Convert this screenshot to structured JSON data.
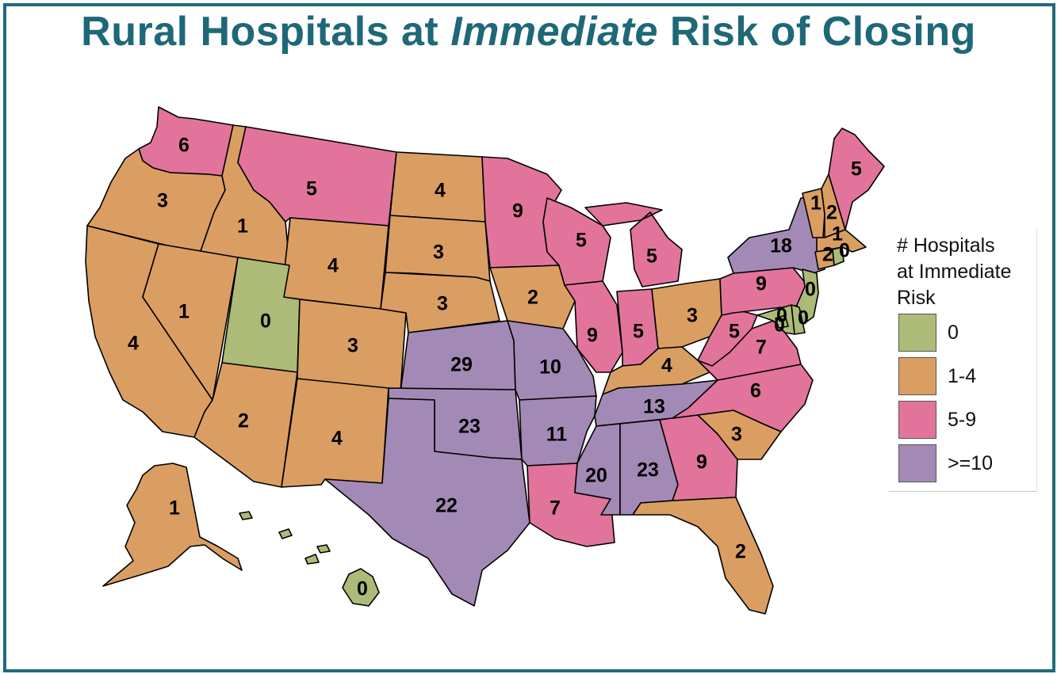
{
  "title": {
    "part1": "Rural Hospitals at ",
    "emphasis": "Immediate",
    "part2": " Risk of Closing"
  },
  "legend": {
    "title_line1": "# Hospitals",
    "title_line2": "at Immediate",
    "title_line3": "Risk",
    "items": [
      {
        "label": "0",
        "color": "#adbb78"
      },
      {
        "label": "1-4",
        "color": "#da9e63"
      },
      {
        "label": "5-9",
        "color": "#e2749c"
      },
      {
        "label": ">=10",
        "color": "#a38ab6"
      }
    ]
  },
  "colors": {
    "zero": "#adbb78",
    "low": "#da9e63",
    "mid": "#e2749c",
    "high": "#a38ab6",
    "frame": "#1f6b7a",
    "title": "#1e6878"
  },
  "states": [
    {
      "name": "WA",
      "value": 6,
      "label": "6"
    },
    {
      "name": "OR",
      "value": 3,
      "label": "3"
    },
    {
      "name": "CA",
      "value": 4,
      "label": "4"
    },
    {
      "name": "ID",
      "value": 1,
      "label": "1"
    },
    {
      "name": "NV",
      "value": 1,
      "label": "1"
    },
    {
      "name": "MT",
      "value": 5,
      "label": "5"
    },
    {
      "name": "WY",
      "value": 4,
      "label": "4"
    },
    {
      "name": "UT",
      "value": 0,
      "label": "0"
    },
    {
      "name": "AZ",
      "value": 2,
      "label": "2"
    },
    {
      "name": "CO",
      "value": 3,
      "label": "3"
    },
    {
      "name": "NM",
      "value": 4,
      "label": "4"
    },
    {
      "name": "ND",
      "value": 4,
      "label": "4"
    },
    {
      "name": "SD",
      "value": 3,
      "label": "3"
    },
    {
      "name": "NE",
      "value": 3,
      "label": "3"
    },
    {
      "name": "KS",
      "value": 29,
      "label": "29"
    },
    {
      "name": "OK",
      "value": 23,
      "label": "23"
    },
    {
      "name": "TX",
      "value": 22,
      "label": "22"
    },
    {
      "name": "MN",
      "value": 9,
      "label": "9"
    },
    {
      "name": "IA",
      "value": 2,
      "label": "2"
    },
    {
      "name": "MO",
      "value": 10,
      "label": "10"
    },
    {
      "name": "AR",
      "value": 11,
      "label": "11"
    },
    {
      "name": "LA",
      "value": 7,
      "label": "7"
    },
    {
      "name": "WI",
      "value": 5,
      "label": "5"
    },
    {
      "name": "IL",
      "value": 9,
      "label": "9"
    },
    {
      "name": "MI",
      "value": 5,
      "label": "5"
    },
    {
      "name": "IN",
      "value": 5,
      "label": "5"
    },
    {
      "name": "OH",
      "value": 3,
      "label": "3"
    },
    {
      "name": "KY",
      "value": 4,
      "label": "4"
    },
    {
      "name": "TN",
      "value": 13,
      "label": "13"
    },
    {
      "name": "MS",
      "value": 20,
      "label": "20"
    },
    {
      "name": "AL",
      "value": 23,
      "label": "23"
    },
    {
      "name": "GA",
      "value": 9,
      "label": "9"
    },
    {
      "name": "FL",
      "value": 2,
      "label": "2"
    },
    {
      "name": "SC",
      "value": 3,
      "label": "3"
    },
    {
      "name": "NC",
      "value": 6,
      "label": "6"
    },
    {
      "name": "VA",
      "value": 7,
      "label": "7"
    },
    {
      "name": "WV",
      "value": 5,
      "label": "5"
    },
    {
      "name": "PA",
      "value": 9,
      "label": "9"
    },
    {
      "name": "NY",
      "value": 18,
      "label": "18"
    },
    {
      "name": "VT",
      "value": 1,
      "label": "1"
    },
    {
      "name": "NH",
      "value": 2,
      "label": "2"
    },
    {
      "name": "ME",
      "value": 5,
      "label": "5"
    },
    {
      "name": "MA",
      "value": 1,
      "label": "1"
    },
    {
      "name": "CT",
      "value": 2,
      "label": "2"
    },
    {
      "name": "RI",
      "value": 0,
      "label": "0"
    },
    {
      "name": "NJ",
      "value": 0,
      "label": "0"
    },
    {
      "name": "DE",
      "value": 0,
      "label": "0"
    },
    {
      "name": "MD",
      "value": 0,
      "label": "0"
    },
    {
      "name": "DC",
      "value": 0,
      "label": "0"
    },
    {
      "name": "AK",
      "value": 1,
      "label": "1"
    },
    {
      "name": "HI",
      "value": 0,
      "label": "0"
    }
  ]
}
